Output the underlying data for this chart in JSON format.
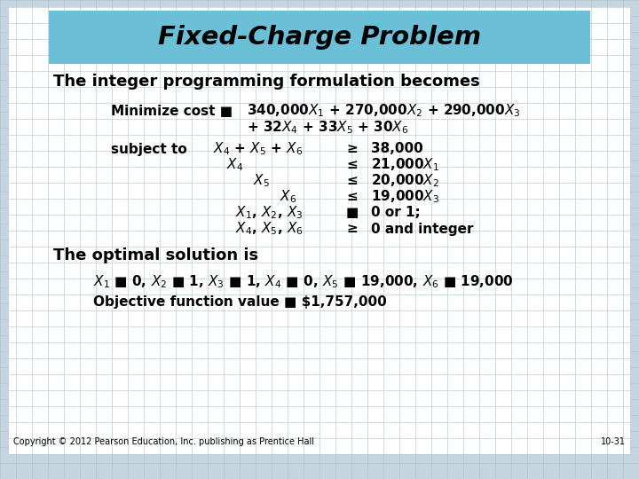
{
  "title": "Fixed-Charge Problem",
  "title_bg_color": "#6BBFD6",
  "slide_bg": "#C5D5E0",
  "white_bg": "#FFFFFF",
  "grid_color": "#ADC5D0",
  "footer_left": "Copyright © 2012 Pearson Education, Inc. publishing as Prentice Hall",
  "footer_right": "10-31",
  "text_color": "#000000",
  "title_color": "#000000"
}
